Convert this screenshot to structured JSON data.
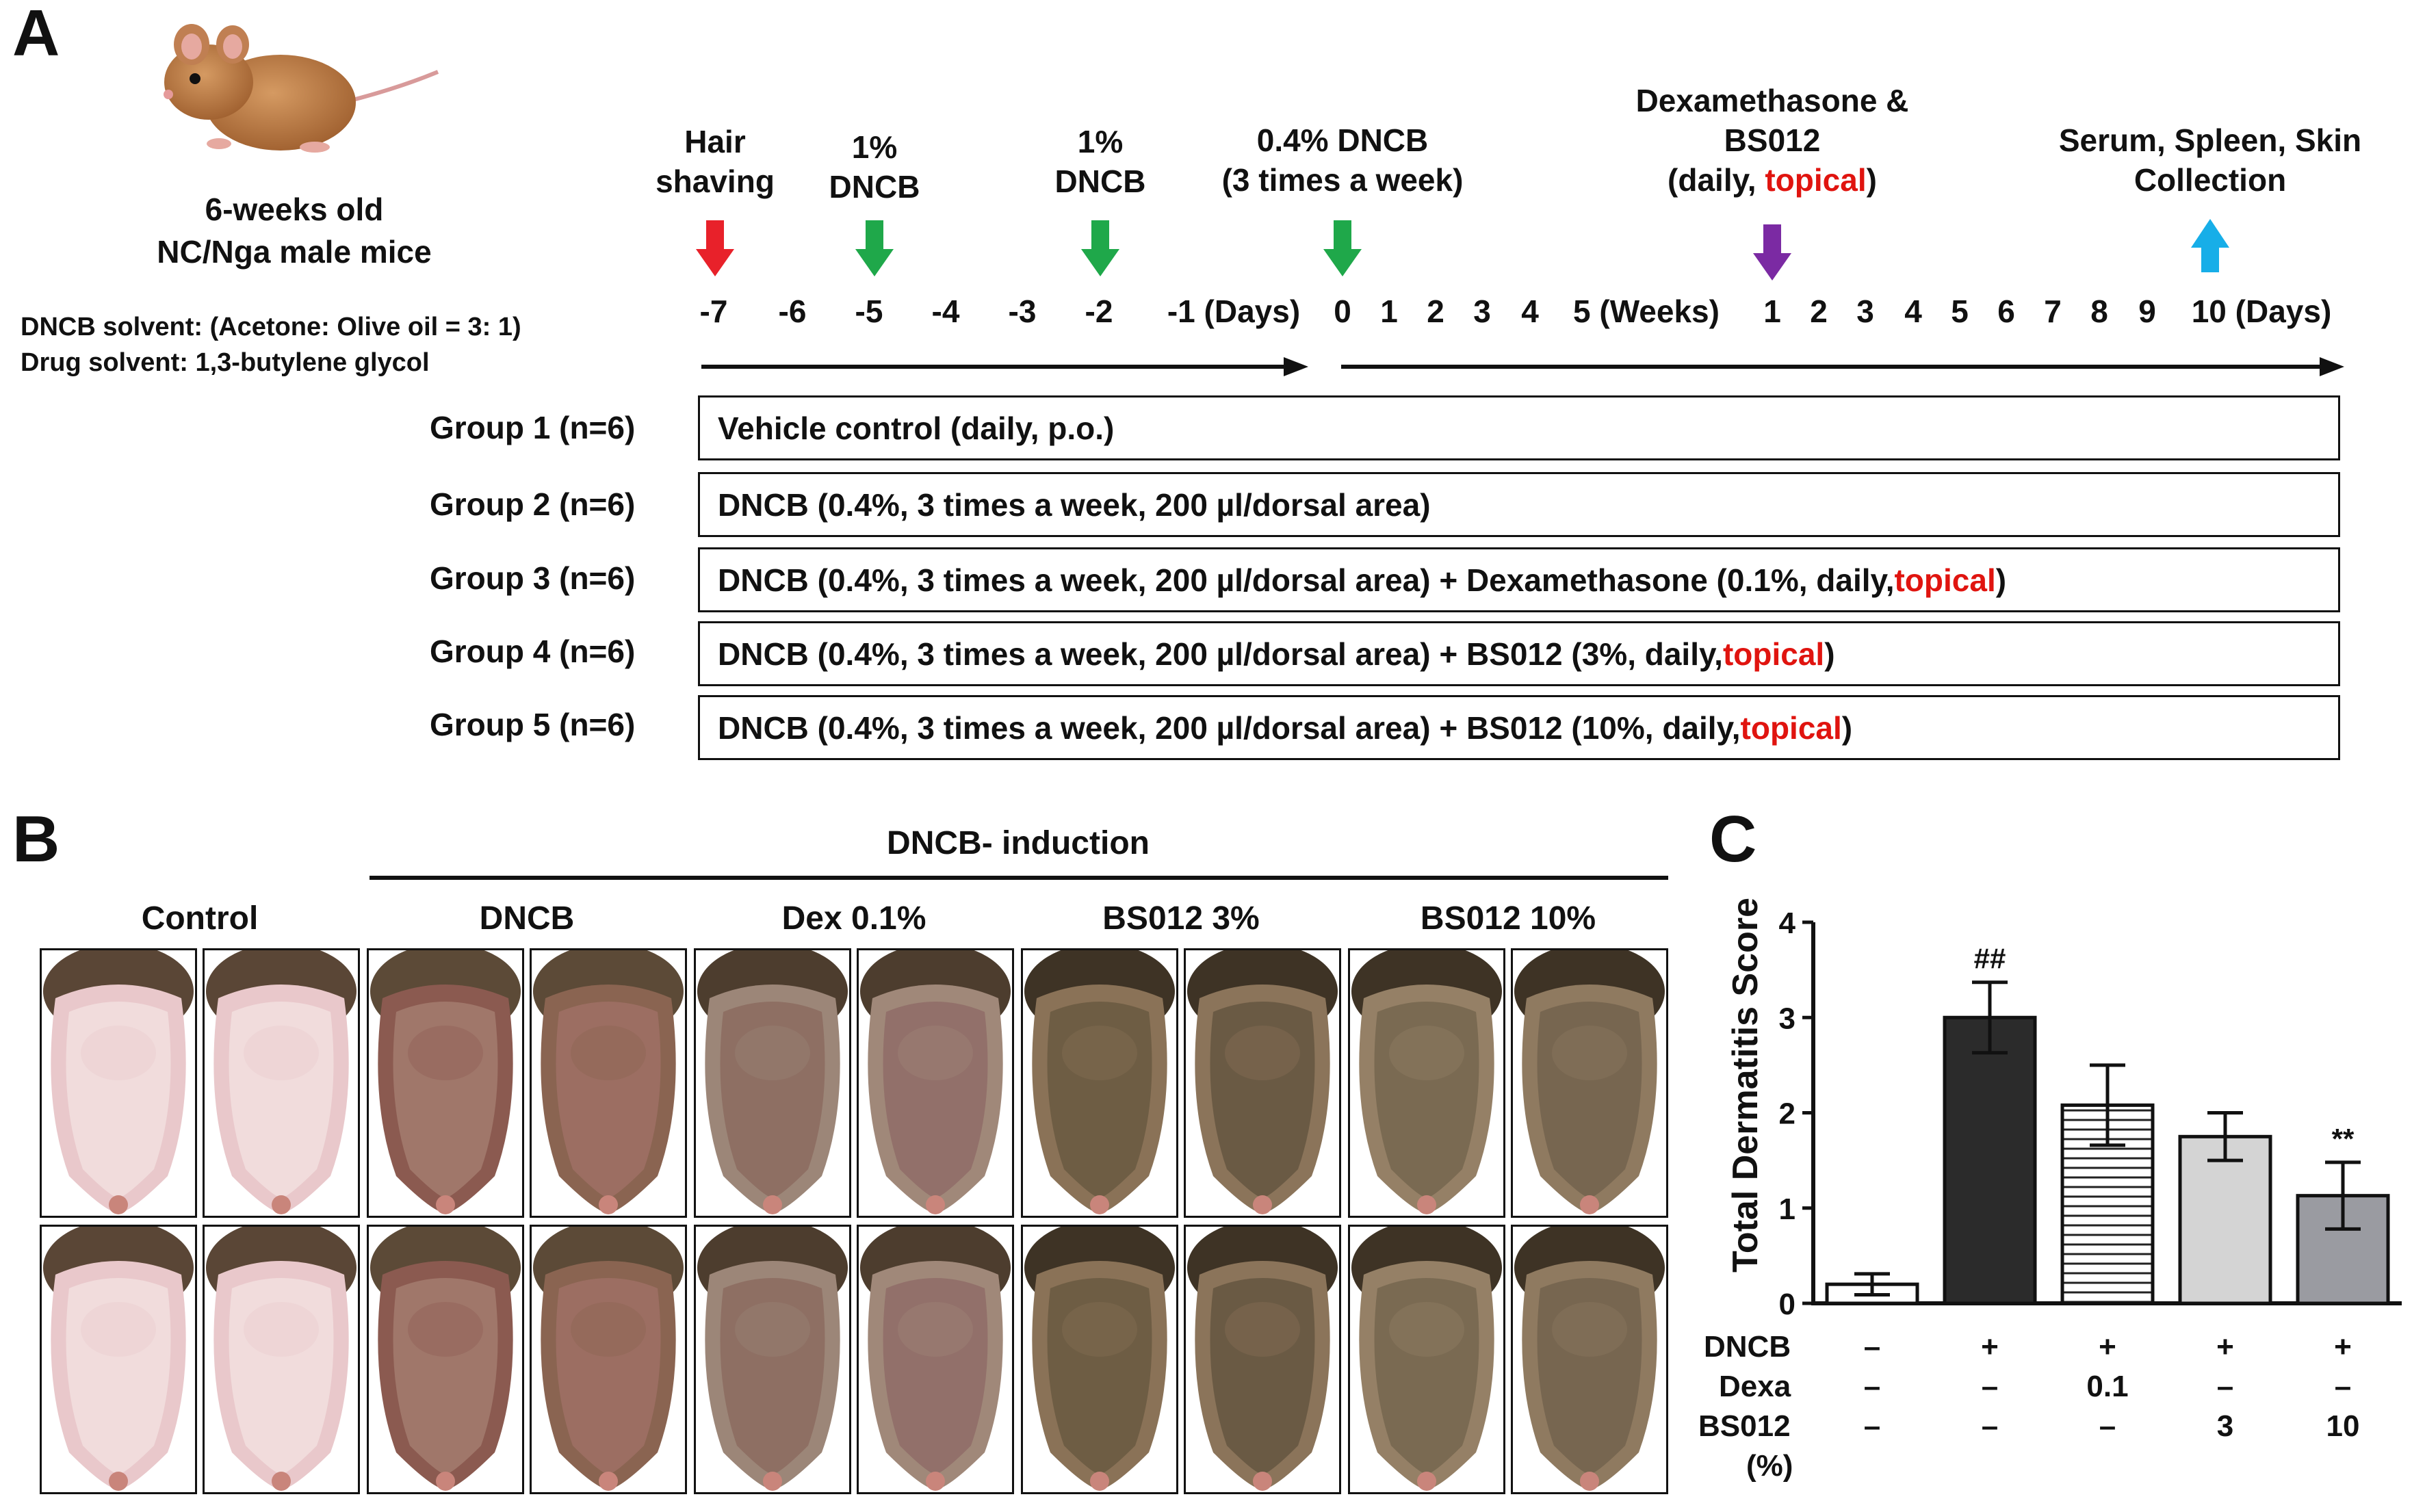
{
  "panelA": {
    "letter": "A",
    "mouse_caption": [
      "6-weeks old",
      "NC/Nga male mice"
    ],
    "solvents": [
      "DNCB solvent: (Acetone: Olive oil = 3: 1)",
      "Drug solvent: 1,3-butylene glycol"
    ],
    "events": [
      {
        "lines": [
          "Hair",
          "shaving"
        ],
        "arrow_color": "#e8212a"
      },
      {
        "lines": [
          "1%",
          "DNCB"
        ],
        "arrow_color": "#1fa84a"
      },
      {
        "lines": [
          "1%",
          "DNCB"
        ],
        "arrow_color": "#1fa84a"
      },
      {
        "lines": [
          "0.4% DNCB",
          "(3 times a week)"
        ],
        "arrow_color": "#1fa84a"
      },
      {
        "lines": [
          "Dexamethasone &",
          "BS012"
        ],
        "extra_prefix": "(daily, ",
        "extra_red": "topical",
        "extra_suffix": ")",
        "arrow_color": "#7b2aa3"
      },
      {
        "lines": [
          "Serum, Spleen, Skin",
          "Collection"
        ],
        "arrow_color": "#17aee8"
      }
    ],
    "timeline1": [
      "-7",
      "-6",
      "-5",
      "-4",
      "-3",
      "-2",
      "-1 (Days)"
    ],
    "timeline2": [
      "0",
      "1",
      "2",
      "3",
      "4",
      "5 (Weeks)",
      "1",
      "2",
      "3",
      "4",
      "5",
      "6",
      "7",
      "8",
      "9",
      "10 (Days)"
    ],
    "groups": [
      {
        "label": "Group 1  (n=6)",
        "text": "Vehicle control (daily, p.o.)",
        "red": "",
        "suffix": ""
      },
      {
        "label": "Group 2  (n=6)",
        "text": "DNCB (0.4%, 3 times a week, 200 µl/dorsal area)",
        "red": "",
        "suffix": ""
      },
      {
        "label": "Group 3  (n=6)",
        "text": "DNCB (0.4%, 3 times a week, 200 µl/dorsal area) + Dexamethasone  (0.1%, daily, ",
        "red": "topical",
        "suffix": ")"
      },
      {
        "label": "Group 4  (n=6)",
        "text": "DNCB (0.4%, 3 times a week, 200 µl/dorsal area) + BS012 (3%, daily, ",
        "red": "topical",
        "suffix": ")"
      },
      {
        "label": "Group 5  (n=6)",
        "text": "DNCB (0.4%, 3 times a week, 200 µl/dorsal area) + BS012 (10%, daily, ",
        "red": "topical",
        "suffix": ")"
      }
    ]
  },
  "panelB": {
    "letter": "B",
    "induction_label": "DNCB- induction",
    "columns": [
      "Control",
      "DNCB",
      "Dex 0.1%",
      "BS012 3%",
      "BS012 10%"
    ]
  },
  "panelC": {
    "letter": "C",
    "row_labels": [
      "DNCB",
      "Dexa",
      "BS012",
      "(%)"
    ],
    "table": [
      [
        "–",
        "+",
        "+",
        "+",
        "+"
      ],
      [
        "–",
        "–",
        "0.1",
        "–",
        "–"
      ],
      [
        "–",
        "–",
        "–",
        "3",
        "10"
      ]
    ]
  },
  "chart_data": {
    "type": "bar",
    "ylabel": "Total Dermatitis Score",
    "ylim": [
      0,
      4
    ],
    "yticks": [
      "0",
      "1",
      "2",
      "3",
      "4"
    ],
    "categories": [
      "Control",
      "DNCB",
      "Dexa 0.1",
      "BS012 3",
      "BS012 10"
    ],
    "values": [
      0.2,
      3.0,
      2.08,
      1.75,
      1.13
    ],
    "errors": [
      0.11,
      0.37,
      0.42,
      0.25,
      0.35
    ],
    "annotations": [
      "",
      "##",
      "",
      "",
      "**"
    ],
    "fills": [
      "#ffffff",
      "#2b2b2b",
      "stripes",
      "#d4d4d4",
      "#9a9ba1"
    ]
  }
}
